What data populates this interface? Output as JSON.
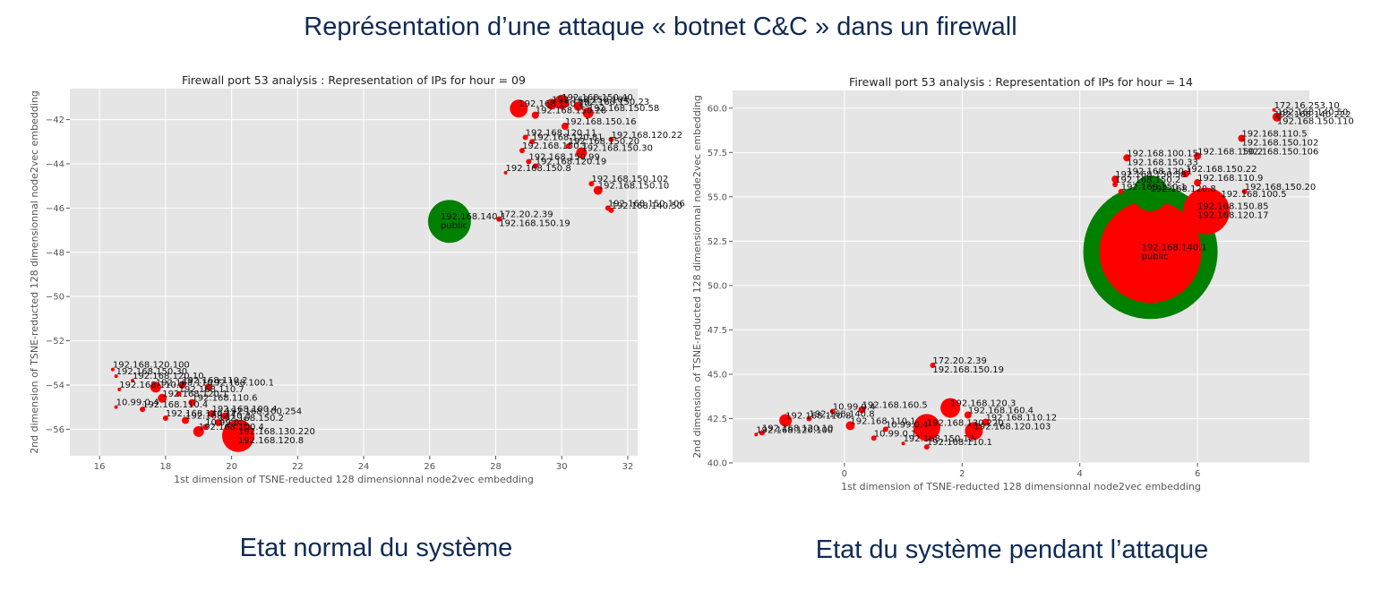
{
  "slide": {
    "title": "Représentation d’une attaque « botnet C&C » dans un firewall",
    "caption_left": "Etat normal du système",
    "caption_right": "Etat du système pendant l’attaque"
  },
  "colors": {
    "plot_bg": "#e5e5e5",
    "grid": "#ffffff",
    "red": "#ff0000",
    "green": "#008000",
    "title_blue": "#0f2a55"
  },
  "chart_data": [
    {
      "type": "scatter",
      "title": "Firewall port 53 analysis : Representation of IPs for hour = 09",
      "xlabel": "1st dimension of TSNE-reducted 128 dimensionnal node2vec embedding",
      "ylabel": "2nd dimension of TSNE-reducted 128 dimensionnal node2vec embedding",
      "xlim": [
        15.1,
        32.3
      ],
      "ylim": [
        -57.2,
        -40.6
      ],
      "xticks": [
        16,
        18,
        20,
        22,
        24,
        26,
        28,
        30,
        32
      ],
      "yticks": [
        -56,
        -54,
        -52,
        -50,
        -48,
        -46,
        -44,
        -42
      ],
      "grid": true,
      "points": [
        {
          "x": 26.6,
          "y": -46.6,
          "r": 24,
          "color": "#008000",
          "label": "192.168.140.1\npublic"
        },
        {
          "x": 28.7,
          "y": -41.5,
          "r": 10,
          "color": "#ff0000",
          "label": "192.168.150.20"
        },
        {
          "x": 29.7,
          "y": -41.3,
          "r": 6,
          "color": "#ff0000",
          "label": "192.168.150.104"
        },
        {
          "x": 30.0,
          "y": -41.2,
          "r": 8,
          "color": "#ff0000",
          "label": "192.168.150.40"
        },
        {
          "x": 30.5,
          "y": -41.4,
          "r": 5,
          "color": "#ff0000",
          "label": "192.168.150.23"
        },
        {
          "x": 29.2,
          "y": -41.8,
          "r": 4,
          "color": "#ff0000",
          "label": "192.168.150.28"
        },
        {
          "x": 30.8,
          "y": -41.7,
          "r": 6,
          "color": "#ff0000",
          "label": "192.168.150.58"
        },
        {
          "x": 30.1,
          "y": -42.3,
          "r": 4,
          "color": "#ff0000",
          "label": "192.168.150.16"
        },
        {
          "x": 28.9,
          "y": -42.8,
          "r": 3,
          "color": "#ff0000",
          "label": "192.168.120.11"
        },
        {
          "x": 29.1,
          "y": -43.0,
          "r": 3,
          "color": "#ff0000",
          "label": "192.168.120.81"
        },
        {
          "x": 31.5,
          "y": -42.9,
          "r": 3,
          "color": "#ff0000",
          "label": "192.168.120.22"
        },
        {
          "x": 30.2,
          "y": -43.2,
          "r": 3,
          "color": "#ff0000",
          "label": "192.168.150.20"
        },
        {
          "x": 28.8,
          "y": -43.4,
          "r": 3,
          "color": "#ff0000",
          "label": "192.168.150.1"
        },
        {
          "x": 30.6,
          "y": -43.5,
          "r": 6,
          "color": "#ff0000",
          "label": "192.168.150.30"
        },
        {
          "x": 29.0,
          "y": -43.9,
          "r": 3,
          "color": "#ff0000",
          "label": "192.168.150.99"
        },
        {
          "x": 29.2,
          "y": -44.1,
          "r": 3,
          "color": "#ff0000",
          "label": "192.168.120.19"
        },
        {
          "x": 28.3,
          "y": -44.4,
          "r": 2,
          "color": "#ff0000",
          "label": "192.168.150.8"
        },
        {
          "x": 30.9,
          "y": -44.9,
          "r": 3,
          "color": "#ff0000",
          "label": "192.168.150.102"
        },
        {
          "x": 31.1,
          "y": -45.2,
          "r": 5,
          "color": "#ff0000",
          "label": "192.168.150.10"
        },
        {
          "x": 31.4,
          "y": -46.0,
          "r": 3,
          "color": "#ff0000",
          "label": "192.168.150.106"
        },
        {
          "x": 31.5,
          "y": -46.1,
          "r": 3,
          "color": "#ff0000",
          "label": "192.168.140.50"
        },
        {
          "x": 28.1,
          "y": -46.5,
          "r": 3,
          "color": "#ff0000",
          "label": "172.20.2.39\n192.168.150.19"
        },
        {
          "x": 16.4,
          "y": -53.3,
          "r": 2,
          "color": "#ff0000",
          "label": "192.168.120.100"
        },
        {
          "x": 16.5,
          "y": -53.6,
          "r": 2,
          "color": "#ff0000",
          "label": "192.168.150.30"
        },
        {
          "x": 17.0,
          "y": -53.8,
          "r": 2,
          "color": "#ff0000",
          "label": "192.168.120.10"
        },
        {
          "x": 16.6,
          "y": -54.2,
          "r": 2,
          "color": "#ff0000",
          "label": "192.168.110.2"
        },
        {
          "x": 17.7,
          "y": -54.1,
          "r": 6,
          "color": "#ff0000",
          "label": "192.168.110.7"
        },
        {
          "x": 18.5,
          "y": -54.0,
          "r": 4,
          "color": "#ff0000",
          "label": "192.168.110.2"
        },
        {
          "x": 19.3,
          "y": -54.1,
          "r": 4,
          "color": "#ff0000",
          "label": "192.168.100.1"
        },
        {
          "x": 18.4,
          "y": -54.4,
          "r": 3,
          "color": "#ff0000",
          "label": "192.168.110.7"
        },
        {
          "x": 17.9,
          "y": -54.6,
          "r": 5,
          "color": "#ff0000",
          "label": "192.168.120.1"
        },
        {
          "x": 18.8,
          "y": -54.8,
          "r": 4,
          "color": "#ff0000",
          "label": "192.168.110.6"
        },
        {
          "x": 16.5,
          "y": -55.0,
          "r": 2,
          "color": "#ff0000",
          "label": "10.99.0.4"
        },
        {
          "x": 17.3,
          "y": -55.1,
          "r": 3,
          "color": "#ff0000",
          "label": "192.168.110.4"
        },
        {
          "x": 19.4,
          "y": -55.3,
          "r": 4,
          "color": "#ff0000",
          "label": "192.168.100.4"
        },
        {
          "x": 19.8,
          "y": -55.4,
          "r": 4,
          "color": "#ff0000",
          "label": "192.168.100.254"
        },
        {
          "x": 18.0,
          "y": -55.5,
          "r": 3,
          "color": "#ff0000",
          "label": "192.168.140.11"
        },
        {
          "x": 18.6,
          "y": -55.6,
          "r": 4,
          "color": "#ff0000",
          "label": "192.168.110.3"
        },
        {
          "x": 19.6,
          "y": -55.7,
          "r": 4,
          "color": "#ff0000",
          "label": "192.168.150.2"
        },
        {
          "x": 19.2,
          "y": -55.9,
          "r": 3,
          "color": "#ff0000",
          "label": "10.99.0.1"
        },
        {
          "x": 19.0,
          "y": -56.1,
          "r": 6,
          "color": "#ff0000",
          "label": "192.168.100.4"
        },
        {
          "x": 20.2,
          "y": -56.3,
          "r": 18,
          "color": "#ff0000",
          "label": "192.168.130.220\n192.168.120.8"
        }
      ]
    },
    {
      "type": "scatter",
      "title": "Firewall port 53 analysis : Representation of IPs for hour = 14",
      "xlabel": "1st dimension of TSNE-reducted 128 dimensionnal node2vec embedding",
      "ylabel": "2nd dimension of TSNE-reducted 128 dimensionnal node2vec embedding",
      "xlim": [
        -1.9,
        7.9
      ],
      "ylim": [
        40.0,
        61.0
      ],
      "xticks": [
        0,
        2,
        4,
        6
      ],
      "yticks": [
        40.0,
        42.5,
        45.0,
        47.5,
        50.0,
        52.5,
        55.0,
        57.5,
        60.0
      ],
      "grid": true,
      "points": [
        {
          "x": 5.2,
          "y": 51.9,
          "r": 75,
          "color": "#008000",
          "label": ""
        },
        {
          "x": 5.2,
          "y": 51.9,
          "r": 57,
          "color": "#ff0000",
          "label": "192.168.140.1\npublic"
        },
        {
          "x": 6.15,
          "y": 54.2,
          "r": 26,
          "color": "#ff0000",
          "label": "192.168.150.85\n192.168.120.17"
        },
        {
          "x": 5.2,
          "y": 55.2,
          "r": 20,
          "color": "#008000",
          "label": "192.168.120.8"
        },
        {
          "x": 7.3,
          "y": 59.9,
          "r": 2,
          "color": "#ff0000",
          "label": "172.16.253.10\n192.168.140.222"
        },
        {
          "x": 7.35,
          "y": 59.5,
          "r": 5,
          "color": "#ff0000",
          "label": "192.168.140.50\n192.168.150.110"
        },
        {
          "x": 6.75,
          "y": 58.3,
          "r": 4,
          "color": "#ff0000",
          "label": "192.168.110.5\n192.168.150.102\n192.168.150.106"
        },
        {
          "x": 6.0,
          "y": 57.3,
          "r": 4,
          "color": "#ff0000",
          "label": "192.168.150.2"
        },
        {
          "x": 4.8,
          "y": 57.2,
          "r": 4,
          "color": "#ff0000",
          "label": "192.168.100.15\n192.168.150.33\n192.168.120.1"
        },
        {
          "x": 5.8,
          "y": 56.3,
          "r": 4,
          "color": "#ff0000",
          "label": "192.168.150.22"
        },
        {
          "x": 6.0,
          "y": 55.8,
          "r": 4,
          "color": "#ff0000",
          "label": "192.168.110.9"
        },
        {
          "x": 4.6,
          "y": 56.0,
          "r": 4,
          "color": "#ff0000",
          "label": "192.168.150.58"
        },
        {
          "x": 4.6,
          "y": 55.7,
          "r": 3,
          "color": "#ff0000",
          "label": "192.168.150.2"
        },
        {
          "x": 4.7,
          "y": 55.3,
          "r": 3,
          "color": "#ff0000",
          "label": "192.168.150.1"
        },
        {
          "x": 6.8,
          "y": 55.3,
          "r": 3,
          "color": "#ff0000",
          "label": "192.168.150.20"
        },
        {
          "x": 6.4,
          "y": 54.9,
          "r": 3,
          "color": "#ff0000",
          "label": "192.168.100.5"
        },
        {
          "x": 1.5,
          "y": 45.5,
          "r": 3,
          "color": "#ff0000",
          "label": "172.20.2.39\n192.168.150.19"
        },
        {
          "x": 0.3,
          "y": 43.0,
          "r": 4,
          "color": "#ff0000",
          "label": "192.168.160.5"
        },
        {
          "x": 1.8,
          "y": 43.1,
          "r": 11,
          "color": "#ff0000",
          "label": "192.168.120.3"
        },
        {
          "x": 2.1,
          "y": 42.7,
          "r": 4,
          "color": "#ff0000",
          "label": "192.168.160.4"
        },
        {
          "x": 2.4,
          "y": 42.3,
          "r": 4,
          "color": "#ff0000",
          "label": "192.168.110.12"
        },
        {
          "x": -1.0,
          "y": 42.4,
          "r": 7,
          "color": "#ff0000",
          "label": "192.168.110.8"
        },
        {
          "x": -0.2,
          "y": 42.9,
          "r": 3,
          "color": "#ff0000",
          "label": "10.99.0.4"
        },
        {
          "x": -0.6,
          "y": 42.5,
          "r": 3,
          "color": "#ff0000",
          "label": "192.168.140.8"
        },
        {
          "x": 0.1,
          "y": 42.1,
          "r": 5,
          "color": "#ff0000",
          "label": "192.168.110.1"
        },
        {
          "x": -1.4,
          "y": 41.7,
          "r": 3,
          "color": "#ff0000",
          "label": "192.168.120.10"
        },
        {
          "x": -1.5,
          "y": 41.6,
          "r": 2,
          "color": "#ff0000",
          "label": "192.168.120.100"
        },
        {
          "x": 0.7,
          "y": 41.9,
          "r": 3,
          "color": "#ff0000",
          "label": "10.99.0.4"
        },
        {
          "x": 1.4,
          "y": 42.0,
          "r": 15,
          "color": "#ff0000",
          "label": "192.168.130.220"
        },
        {
          "x": 2.2,
          "y": 41.8,
          "r": 10,
          "color": "#ff0000",
          "label": "192.168.120.103"
        },
        {
          "x": 0.5,
          "y": 41.4,
          "r": 3,
          "color": "#ff0000",
          "label": "10.99.0.1"
        },
        {
          "x": 1.0,
          "y": 41.1,
          "r": 2,
          "color": "#ff0000",
          "label": "192.168.150.12"
        },
        {
          "x": 1.4,
          "y": 40.9,
          "r": 3,
          "color": "#ff0000",
          "label": "192.168.110.1"
        }
      ]
    }
  ]
}
